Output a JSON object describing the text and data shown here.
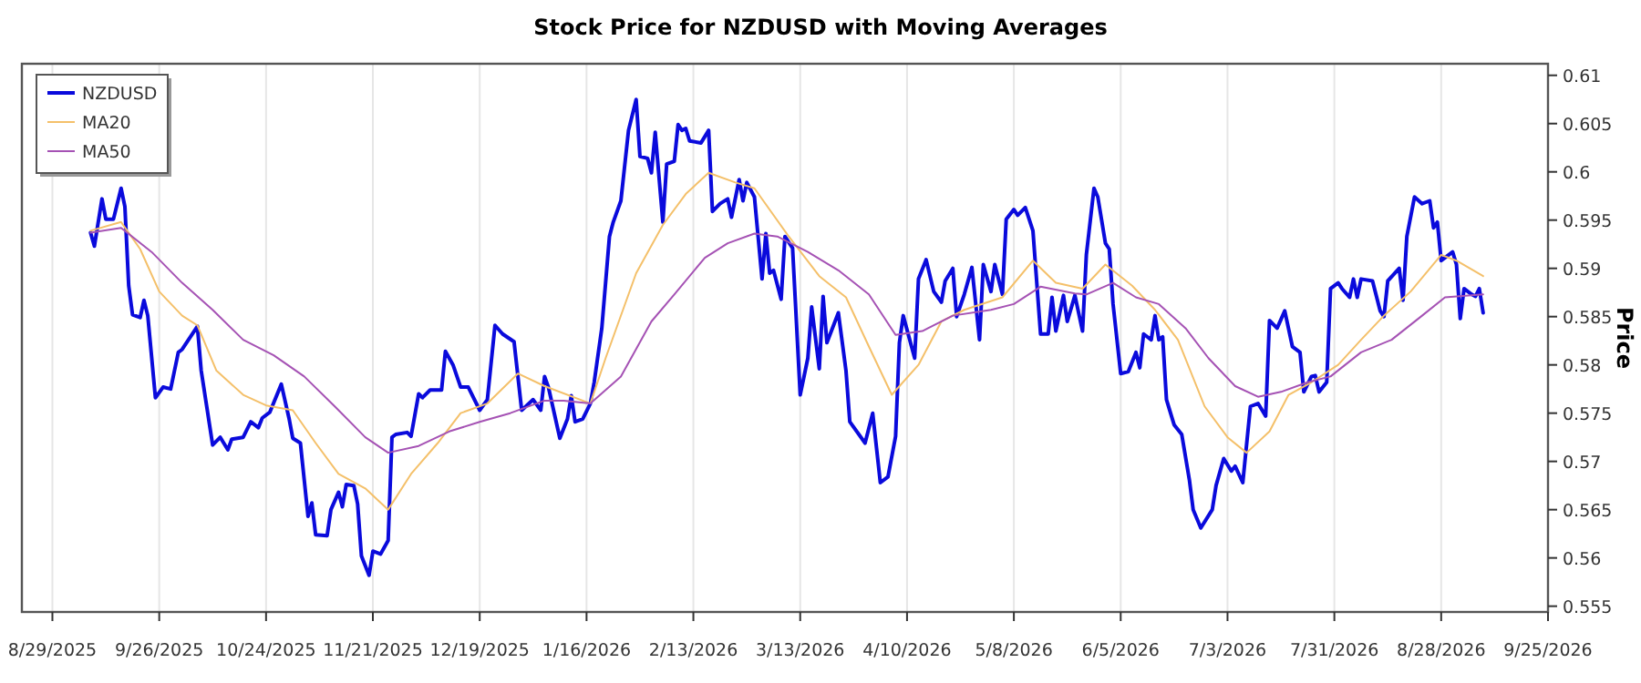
{
  "chart_data": {
    "type": "line",
    "title": "Stock Price for NZDUSD with Moving Averages",
    "ylabel": "Price",
    "legend": "top left",
    "grid": "x",
    "line_style": "solid",
    "marker": "none",
    "xlim": [
      "2025-08-21",
      "2026-09-25"
    ],
    "xticks": [
      {
        "value": "2025-08-29",
        "label": "8/29/2025"
      },
      {
        "value": "2025-09-26",
        "label": "9/26/2025"
      },
      {
        "value": "2025-10-24",
        "label": "10/24/2025"
      },
      {
        "value": "2025-11-21",
        "label": "11/21/2025"
      },
      {
        "value": "2025-12-19",
        "label": "12/19/2025"
      },
      {
        "value": "2026-01-16",
        "label": "1/16/2026"
      },
      {
        "value": "2026-02-13",
        "label": "2/13/2026"
      },
      {
        "value": "2026-03-13",
        "label": "3/13/2026"
      },
      {
        "value": "2026-04-10",
        "label": "4/10/2026"
      },
      {
        "value": "2026-05-08",
        "label": "5/8/2026"
      },
      {
        "value": "2026-06-05",
        "label": "6/5/2026"
      },
      {
        "value": "2026-07-03",
        "label": "7/3/2026"
      },
      {
        "value": "2026-07-31",
        "label": "7/31/2026"
      },
      {
        "value": "2026-08-28",
        "label": "8/28/2026"
      },
      {
        "value": "2026-09-25",
        "label": "9/25/2026"
      }
    ],
    "ylim": [
      0.5544,
      0.6112
    ],
    "yticks": [
      0.555,
      0.56,
      0.565,
      0.57,
      0.575,
      0.58,
      0.585,
      0.59,
      0.595,
      0.6,
      0.605,
      0.61
    ],
    "series": [
      {
        "name": "NZDUSD",
        "color": "#0a0adc",
        "x": [
          "2025-09-08",
          "2025-09-09",
          "2025-09-11",
          "2025-09-12",
          "2025-09-14",
          "2025-09-16",
          "2025-09-17",
          "2025-09-18",
          "2025-09-19",
          "2025-09-21",
          "2025-09-22",
          "2025-09-23",
          "2025-09-25",
          "2025-09-27",
          "2025-09-29",
          "2025-10-01",
          "2025-10-02",
          "2025-10-06",
          "2025-10-07",
          "2025-10-10",
          "2025-10-12",
          "2025-10-14",
          "2025-10-15",
          "2025-10-18",
          "2025-10-20",
          "2025-10-22",
          "2025-10-23",
          "2025-10-25",
          "2025-10-28",
          "2025-10-30",
          "2025-10-31",
          "2025-11-02",
          "2025-11-04",
          "2025-11-05",
          "2025-11-06",
          "2025-11-09",
          "2025-11-10",
          "2025-11-12",
          "2025-11-13",
          "2025-11-14",
          "2025-11-16",
          "2025-11-17",
          "2025-11-18",
          "2025-11-20",
          "2025-11-21",
          "2025-11-23",
          "2025-11-25",
          "2025-11-26",
          "2025-11-27",
          "2025-11-30",
          "2025-12-01",
          "2025-12-03",
          "2025-12-04",
          "2025-12-06",
          "2025-12-09",
          "2025-12-10",
          "2025-12-12",
          "2025-12-14",
          "2025-12-16",
          "2025-12-19",
          "2025-12-21",
          "2025-12-23",
          "2025-12-25",
          "2025-12-28",
          "2025-12-30",
          "2026-01-02",
          "2026-01-04",
          "2026-01-05",
          "2026-01-06",
          "2026-01-09",
          "2026-01-11",
          "2026-01-12",
          "2026-01-13",
          "2026-01-15",
          "2026-01-17",
          "2026-01-18",
          "2026-01-20",
          "2026-01-22",
          "2026-01-23",
          "2026-01-25",
          "2026-01-27",
          "2026-01-29",
          "2026-01-30",
          "2026-02-01",
          "2026-02-02",
          "2026-02-03",
          "2026-02-05",
          "2026-02-06",
          "2026-02-08",
          "2026-02-09",
          "2026-02-10",
          "2026-02-11",
          "2026-02-12",
          "2026-02-15",
          "2026-02-17",
          "2026-02-18",
          "2026-02-20",
          "2026-02-22",
          "2026-02-23",
          "2026-02-25",
          "2026-02-26",
          "2026-02-27",
          "2026-03-01",
          "2026-03-03",
          "2026-03-04",
          "2026-03-05",
          "2026-03-06",
          "2026-03-08",
          "2026-03-09",
          "2026-03-11",
          "2026-03-13",
          "2026-03-15",
          "2026-03-16",
          "2026-03-18",
          "2026-03-19",
          "2026-03-20",
          "2026-03-23",
          "2026-03-25",
          "2026-03-26",
          "2026-03-30",
          "2026-04-01",
          "2026-04-03",
          "2026-04-05",
          "2026-04-07",
          "2026-04-08",
          "2026-04-09",
          "2026-04-12",
          "2026-04-13",
          "2026-04-15",
          "2026-04-17",
          "2026-04-19",
          "2026-04-20",
          "2026-04-22",
          "2026-04-23",
          "2026-04-25",
          "2026-04-27",
          "2026-04-29",
          "2026-04-30",
          "2026-05-02",
          "2026-05-03",
          "2026-05-05",
          "2026-05-06",
          "2026-05-08",
          "2026-05-09",
          "2026-05-11",
          "2026-05-13",
          "2026-05-15",
          "2026-05-17",
          "2026-05-18",
          "2026-05-19",
          "2026-05-21",
          "2026-05-22",
          "2026-05-24",
          "2026-05-26",
          "2026-05-27",
          "2026-05-29",
          "2026-05-30",
          "2026-06-01",
          "2026-06-02",
          "2026-06-03",
          "2026-06-05",
          "2026-06-07",
          "2026-06-09",
          "2026-06-10",
          "2026-06-11",
          "2026-06-13",
          "2026-06-14",
          "2026-06-15",
          "2026-06-16",
          "2026-06-17",
          "2026-06-19",
          "2026-06-21",
          "2026-06-23",
          "2026-06-24",
          "2026-06-26",
          "2026-06-29",
          "2026-06-30",
          "2026-07-02",
          "2026-07-04",
          "2026-07-05",
          "2026-07-07",
          "2026-07-09",
          "2026-07-11",
          "2026-07-13",
          "2026-07-14",
          "2026-07-16",
          "2026-07-18",
          "2026-07-20",
          "2026-07-22",
          "2026-07-23",
          "2026-07-25",
          "2026-07-26",
          "2026-07-27",
          "2026-07-29",
          "2026-07-30",
          "2026-08-01",
          "2026-08-02",
          "2026-08-04",
          "2026-08-05",
          "2026-08-06",
          "2026-08-07",
          "2026-08-10",
          "2026-08-12",
          "2026-08-13",
          "2026-08-14",
          "2026-08-17",
          "2026-08-18",
          "2026-08-19",
          "2026-08-21",
          "2026-08-23",
          "2026-08-25",
          "2026-08-26",
          "2026-08-27",
          "2026-08-28",
          "2026-08-31",
          "2026-09-01",
          "2026-09-02",
          "2026-09-03",
          "2026-09-05",
          "2026-09-06",
          "2026-09-07",
          "2026-09-08"
        ],
        "values": [
          0.5937,
          0.5923,
          0.5972,
          0.5951,
          0.5951,
          0.5983,
          0.5964,
          0.5882,
          0.5852,
          0.5849,
          0.5867,
          0.5851,
          0.5766,
          0.5777,
          0.5775,
          0.5813,
          0.5816,
          0.584,
          0.5794,
          0.5717,
          0.5725,
          0.5712,
          0.5723,
          0.5725,
          0.5741,
          0.5735,
          0.5745,
          0.5751,
          0.578,
          0.5745,
          0.5724,
          0.5719,
          0.5643,
          0.5657,
          0.5624,
          0.5623,
          0.565,
          0.5668,
          0.5653,
          0.5676,
          0.5675,
          0.5656,
          0.5602,
          0.5582,
          0.5607,
          0.5604,
          0.5618,
          0.5725,
          0.5728,
          0.573,
          0.5726,
          0.577,
          0.5766,
          0.5774,
          0.5774,
          0.5814,
          0.58,
          0.5777,
          0.5777,
          0.5753,
          0.5764,
          0.5841,
          0.5832,
          0.5824,
          0.5753,
          0.5764,
          0.5753,
          0.5788,
          0.5777,
          0.5724,
          0.5744,
          0.5768,
          0.5741,
          0.5744,
          0.576,
          0.5782,
          0.5838,
          0.5933,
          0.5948,
          0.597,
          0.6043,
          0.6075,
          0.6016,
          0.6014,
          0.5999,
          0.6041,
          0.5948,
          0.6008,
          0.6011,
          0.6049,
          0.6043,
          0.6045,
          0.6032,
          0.603,
          0.6043,
          0.5959,
          0.5967,
          0.5972,
          0.5953,
          0.5992,
          0.597,
          0.5989,
          0.5974,
          0.5889,
          0.5936,
          0.5895,
          0.5898,
          0.5868,
          0.5933,
          0.5921,
          0.5769,
          0.5807,
          0.586,
          0.5796,
          0.5871,
          0.5823,
          0.5854,
          0.5794,
          0.5741,
          0.5719,
          0.575,
          0.5678,
          0.5684,
          0.5726,
          0.5823,
          0.5851,
          0.5807,
          0.5889,
          0.5909,
          0.5876,
          0.5865,
          0.5887,
          0.59,
          0.585,
          0.5873,
          0.5901,
          0.5826,
          0.5904,
          0.5876,
          0.5904,
          0.5873,
          0.5951,
          0.5961,
          0.5955,
          0.5963,
          0.5939,
          0.5832,
          0.5832,
          0.587,
          0.5835,
          0.5872,
          0.5845,
          0.5872,
          0.5835,
          0.5914,
          0.5983,
          0.5974,
          0.5926,
          0.592,
          0.5863,
          0.5791,
          0.5793,
          0.5813,
          0.5797,
          0.5832,
          0.5826,
          0.5851,
          0.5826,
          0.5829,
          0.5764,
          0.5738,
          0.5728,
          0.5681,
          0.565,
          0.5631,
          0.565,
          0.5675,
          0.5703,
          0.569,
          0.5695,
          0.5678,
          0.5757,
          0.576,
          0.5747,
          0.5846,
          0.5838,
          0.5856,
          0.5819,
          0.5813,
          0.5772,
          0.5788,
          0.5789,
          0.5772,
          0.5782,
          0.5879,
          0.5885,
          0.5879,
          0.587,
          0.5889,
          0.587,
          0.5889,
          0.5887,
          0.5856,
          0.585,
          0.5887,
          0.59,
          0.5867,
          0.5933,
          0.5974,
          0.5967,
          0.597,
          0.5942,
          0.5948,
          0.5908,
          0.5917,
          0.5904,
          0.5848,
          0.5879,
          0.5873,
          0.5871,
          0.5879,
          0.5854
        ]
      },
      {
        "name": "MA20",
        "color": "#f4c06a",
        "x": [
          "2025-09-08",
          "2025-09-16",
          "2025-09-21",
          "2025-09-26",
          "2025-10-02",
          "2025-10-06",
          "2025-10-11",
          "2025-10-18",
          "2025-10-24",
          "2025-10-31",
          "2025-11-06",
          "2025-11-12",
          "2025-11-19",
          "2025-11-25",
          "2025-12-01",
          "2025-12-08",
          "2025-12-14",
          "2025-12-21",
          "2025-12-29",
          "2026-01-05",
          "2026-01-17",
          "2026-01-21",
          "2026-01-29",
          "2026-02-05",
          "2026-02-11",
          "2026-02-17",
          "2026-02-24",
          "2026-03-01",
          "2026-03-10",
          "2026-03-18",
          "2026-03-25",
          "2026-03-31",
          "2026-04-06",
          "2026-04-13",
          "2026-04-19",
          "2026-04-25",
          "2026-05-05",
          "2026-05-13",
          "2026-05-19",
          "2026-05-26",
          "2026-06-01",
          "2026-06-08",
          "2026-06-14",
          "2026-06-20",
          "2026-06-27",
          "2026-07-03",
          "2026-07-08",
          "2026-07-14",
          "2026-07-19",
          "2026-07-25",
          "2026-08-01",
          "2026-08-07",
          "2026-08-13",
          "2026-08-20",
          "2026-08-28",
          "2026-09-01",
          "2026-09-08"
        ],
        "values": [
          0.5939,
          0.5948,
          0.592,
          0.5876,
          0.5851,
          0.5841,
          0.5794,
          0.5769,
          0.5758,
          0.5753,
          0.5719,
          0.5687,
          0.5672,
          0.565,
          0.5687,
          0.5719,
          0.575,
          0.576,
          0.5791,
          0.5778,
          0.576,
          0.5807,
          0.5895,
          0.5945,
          0.5977,
          0.5999,
          0.5989,
          0.5983,
          0.5933,
          0.5892,
          0.587,
          0.5819,
          0.5769,
          0.58,
          0.5845,
          0.5857,
          0.587,
          0.5908,
          0.5885,
          0.5879,
          0.5904,
          0.5882,
          0.5857,
          0.5826,
          0.5757,
          0.5725,
          0.5709,
          0.5731,
          0.5769,
          0.5782,
          0.58,
          0.5826,
          0.5851,
          0.5876,
          0.5914,
          0.5908,
          0.5892
        ]
      },
      {
        "name": "MA50",
        "color": "#a552b4",
        "x": [
          "2025-09-08",
          "2025-09-16",
          "2025-09-24",
          "2025-10-02",
          "2025-10-10",
          "2025-10-18",
          "2025-10-26",
          "2025-11-03",
          "2025-11-11",
          "2025-11-19",
          "2025-11-25",
          "2025-12-03",
          "2025-12-11",
          "2025-12-19",
          "2025-12-27",
          "2026-01-05",
          "2026-01-10",
          "2026-01-17",
          "2026-01-25",
          "2026-02-02",
          "2026-02-08",
          "2026-02-16",
          "2026-02-22",
          "2026-03-01",
          "2026-03-07",
          "2026-03-15",
          "2026-03-23",
          "2026-03-31",
          "2026-04-07",
          "2026-04-14",
          "2026-04-22",
          "2026-05-02",
          "2026-05-08",
          "2026-05-15",
          "2026-05-24",
          "2026-05-27",
          "2026-06-03",
          "2026-06-09",
          "2026-06-15",
          "2026-06-22",
          "2026-06-28",
          "2026-07-05",
          "2026-07-11",
          "2026-07-17",
          "2026-07-24",
          "2026-07-30",
          "2026-08-07",
          "2026-08-15",
          "2026-08-23",
          "2026-08-29",
          "2026-09-08"
        ],
        "values": [
          0.5937,
          0.5942,
          0.5917,
          0.5885,
          0.5857,
          0.5826,
          0.581,
          0.5788,
          0.5757,
          0.5725,
          0.5709,
          0.5716,
          0.5731,
          0.5741,
          0.575,
          0.5763,
          0.5763,
          0.576,
          0.5788,
          0.5845,
          0.5873,
          0.5911,
          0.5926,
          0.5936,
          0.5933,
          0.5917,
          0.5898,
          0.5873,
          0.5831,
          0.5835,
          0.5851,
          0.5857,
          0.5863,
          0.5881,
          0.5874,
          0.5873,
          0.5885,
          0.587,
          0.5863,
          0.5838,
          0.5807,
          0.5778,
          0.5767,
          0.5772,
          0.5782,
          0.5788,
          0.5813,
          0.5826,
          0.5851,
          0.587,
          0.5873
        ]
      }
    ]
  }
}
